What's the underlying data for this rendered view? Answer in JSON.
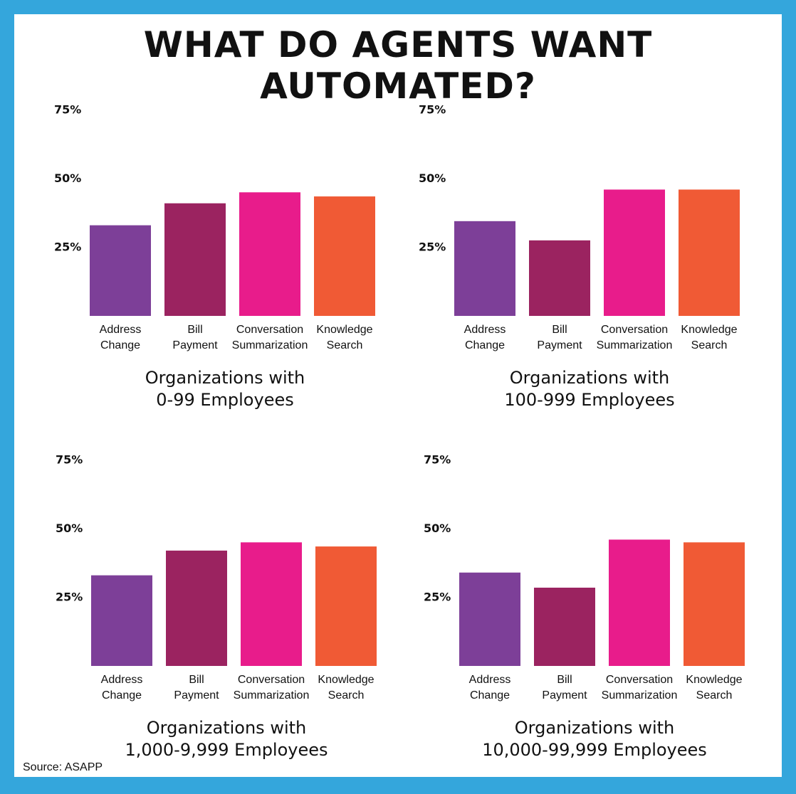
{
  "title": "WHAT DO AGENTS WANT AUTOMATED?",
  "source": "Source: ASAPP",
  "colors": [
    "#7d3f98",
    "#9b2360",
    "#e81c8b",
    "#f05a35"
  ],
  "chart_data": [
    {
      "type": "bar",
      "title": [
        "Organizations with",
        "0-99 Employees"
      ],
      "categories": [
        [
          "Address",
          "Change"
        ],
        [
          "Bill",
          "Payment"
        ],
        [
          "Conversation",
          "Summarization"
        ],
        [
          "Knowledge",
          "Search"
        ]
      ],
      "values": [
        33,
        41,
        45,
        43.5
      ],
      "yticks": [
        "75%",
        "50%",
        "25%"
      ],
      "ylim": [
        0,
        75
      ],
      "grid": false
    },
    {
      "type": "bar",
      "title": [
        "Organizations with",
        "100-999 Employees"
      ],
      "categories": [
        [
          "Address",
          "Change"
        ],
        [
          "Bill",
          "Payment"
        ],
        [
          "Conversation",
          "Summarization"
        ],
        [
          "Knowledge",
          "Search"
        ]
      ],
      "values": [
        34.5,
        27.5,
        46,
        46
      ],
      "yticks": [
        "75%",
        "50%",
        "25%"
      ],
      "ylim": [
        0,
        75
      ],
      "grid": false
    },
    {
      "type": "bar",
      "title": [
        "Organizations with",
        "1,000-9,999 Employees"
      ],
      "categories": [
        [
          "Address",
          "Change"
        ],
        [
          "Bill",
          "Payment"
        ],
        [
          "Conversation",
          "Summarization"
        ],
        [
          "Knowledge",
          "Search"
        ]
      ],
      "values": [
        33,
        42,
        45,
        43.5
      ],
      "yticks": [
        "75%",
        "50%",
        "25%"
      ],
      "ylim": [
        0,
        75
      ],
      "grid": false
    },
    {
      "type": "bar",
      "title": [
        "Organizations with",
        "10,000-99,999 Employees"
      ],
      "categories": [
        [
          "Address",
          "Change"
        ],
        [
          "Bill",
          "Payment"
        ],
        [
          "Conversation",
          "Summarization"
        ],
        [
          "Knowledge",
          "Search"
        ]
      ],
      "values": [
        34,
        28.5,
        46,
        45
      ],
      "yticks": [
        "75%",
        "50%",
        "25%"
      ],
      "ylim": [
        0,
        75
      ],
      "grid": false
    }
  ]
}
